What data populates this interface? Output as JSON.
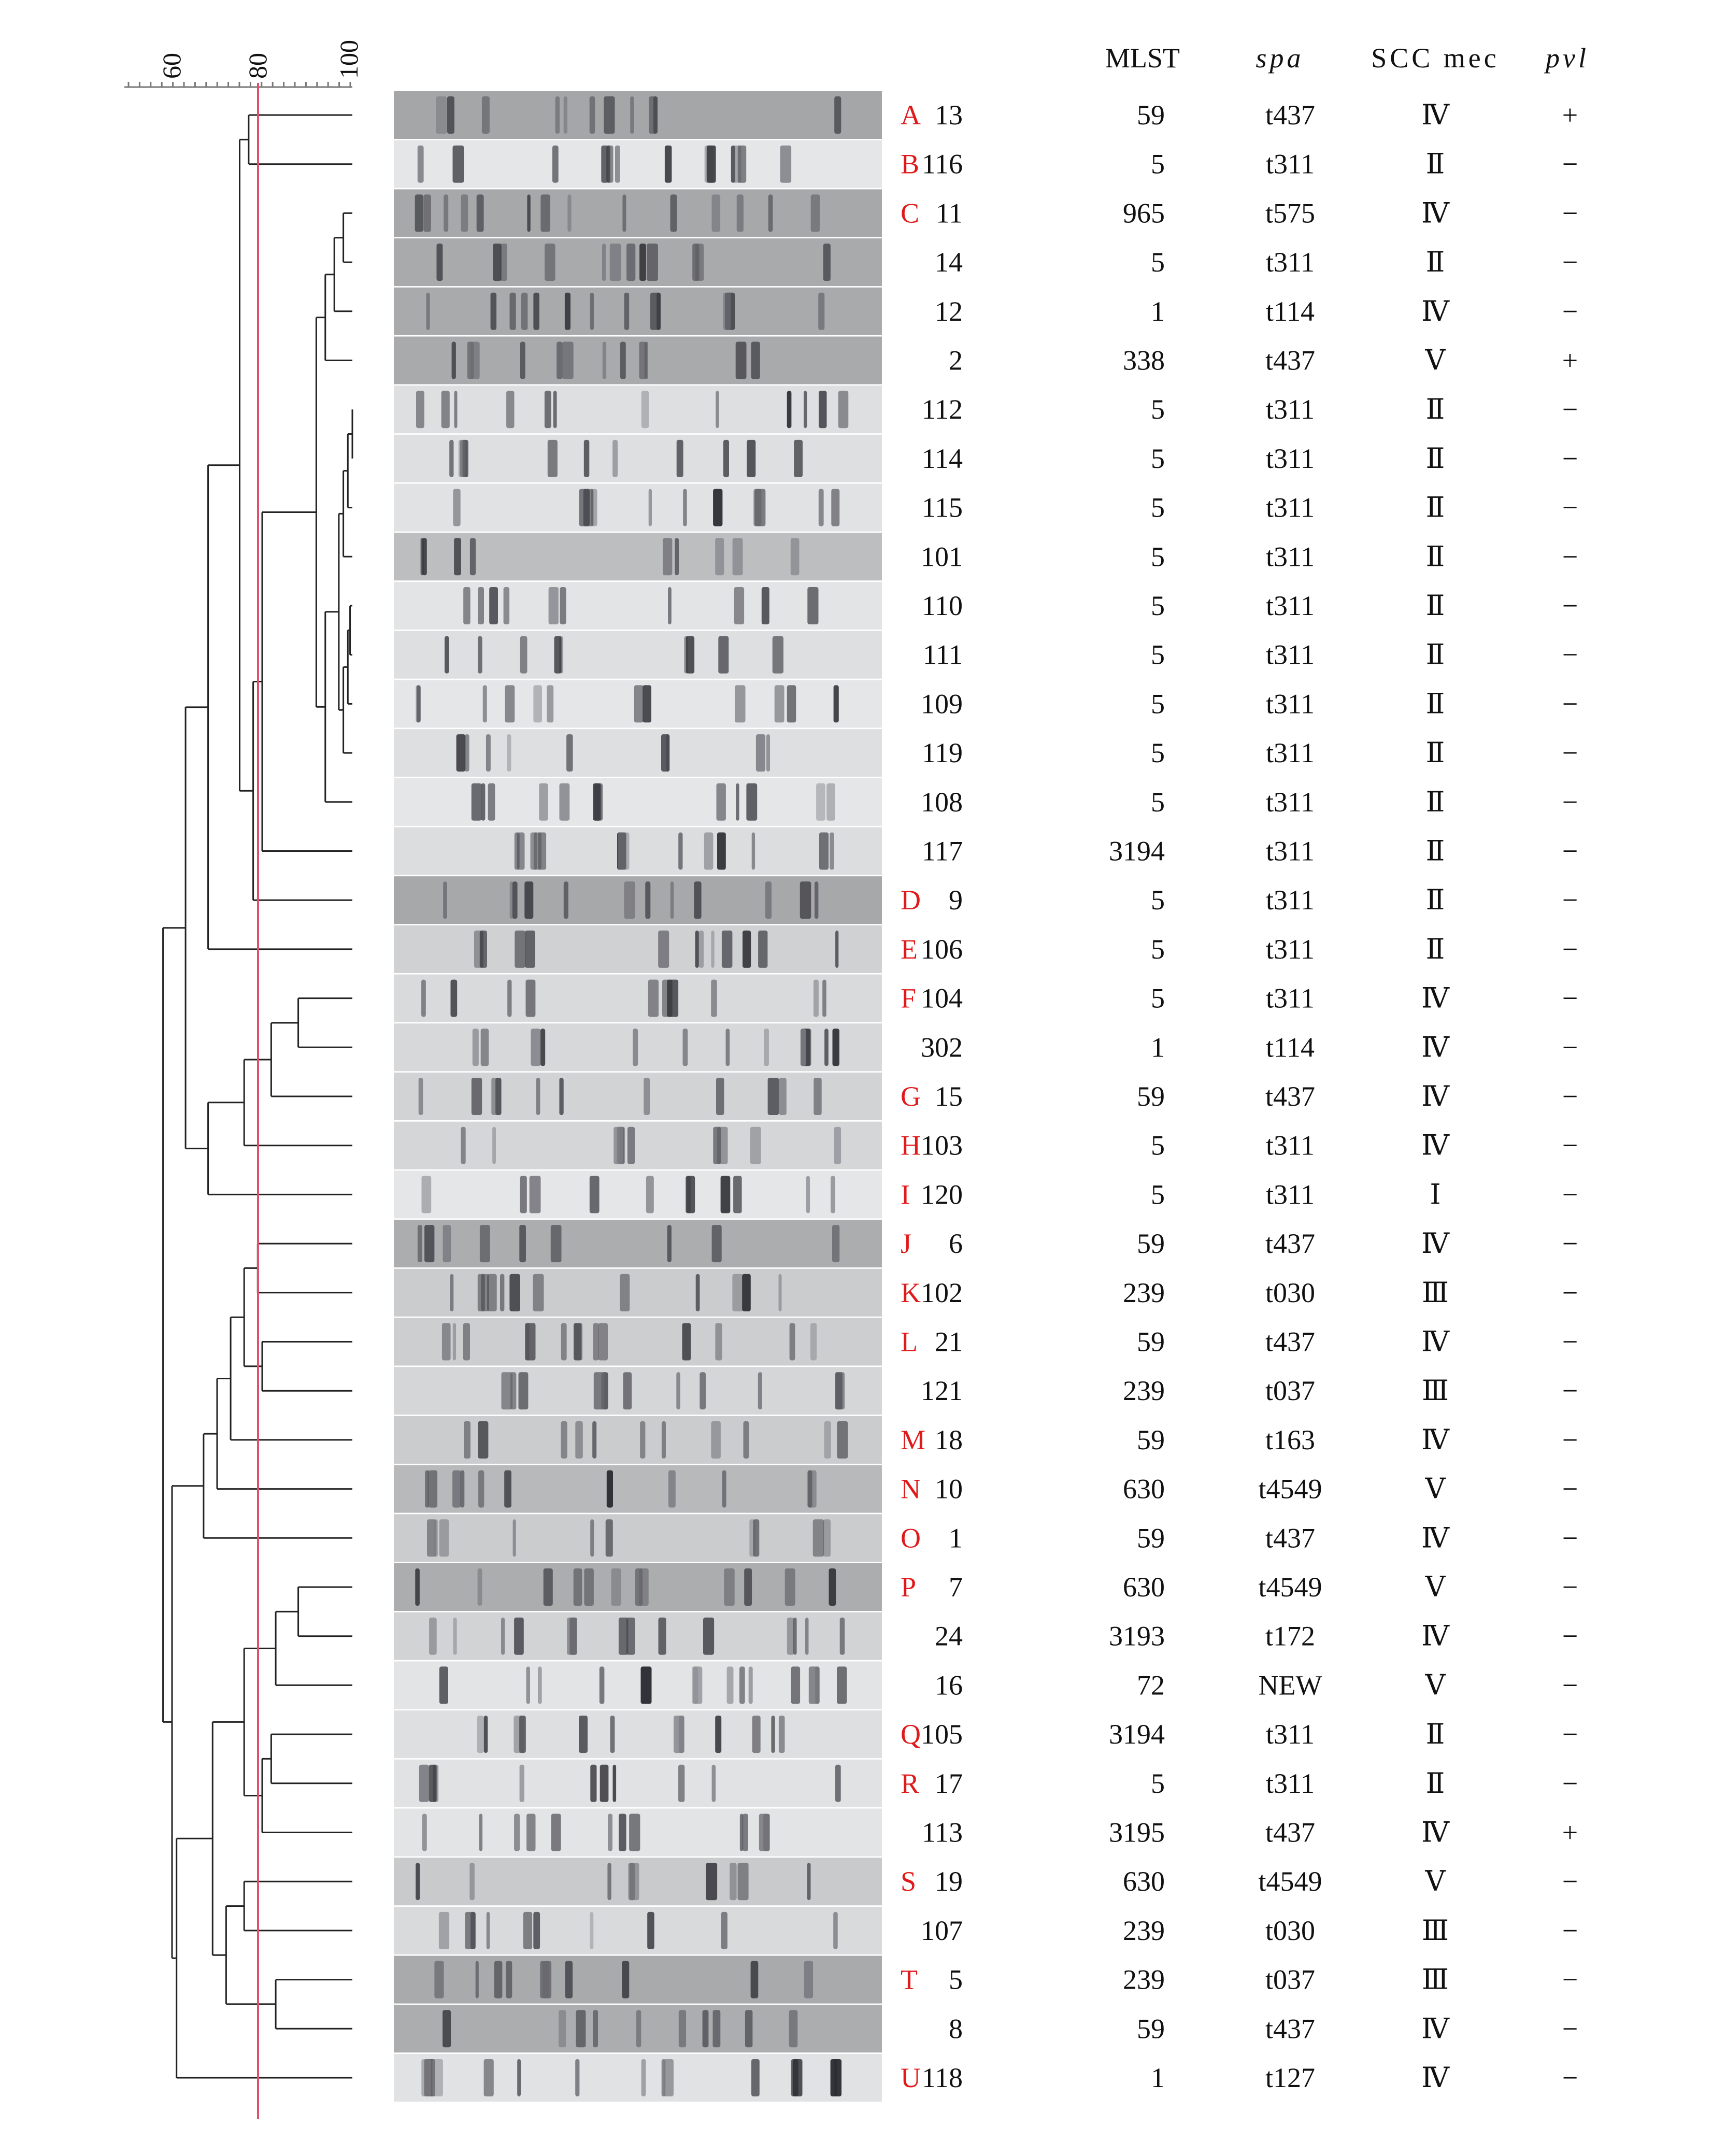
{
  "scale": {
    "ticks": [
      "60",
      "80",
      "100"
    ]
  },
  "headers": {
    "mlst": "MLST",
    "spa": "spa",
    "sccmec": "SCC mec",
    "pvl": "pvl"
  },
  "colors": {
    "cutoff_line": "#e0506a",
    "cluster_letter": "#e01a1a",
    "ink": "#111111"
  },
  "rows": [
    {
      "cluster": "A",
      "isolate": "13",
      "mlst": "59",
      "spa": "t437",
      "scc": "Ⅳ",
      "pvl": "+"
    },
    {
      "cluster": "B",
      "isolate": "116",
      "mlst": "5",
      "spa": "t311",
      "scc": "Ⅱ",
      "pvl": "−"
    },
    {
      "cluster": "C",
      "isolate": "11",
      "mlst": "965",
      "spa": "t575",
      "scc": "Ⅳ",
      "pvl": "−"
    },
    {
      "cluster": "",
      "isolate": "14",
      "mlst": "5",
      "spa": "t311",
      "scc": "Ⅱ",
      "pvl": "−"
    },
    {
      "cluster": "",
      "isolate": "12",
      "mlst": "1",
      "spa": "t114",
      "scc": "Ⅳ",
      "pvl": "−"
    },
    {
      "cluster": "",
      "isolate": "2",
      "mlst": "338",
      "spa": "t437",
      "scc": "Ⅴ",
      "pvl": "+"
    },
    {
      "cluster": "",
      "isolate": "112",
      "mlst": "5",
      "spa": "t311",
      "scc": "Ⅱ",
      "pvl": "−"
    },
    {
      "cluster": "",
      "isolate": "114",
      "mlst": "5",
      "spa": "t311",
      "scc": "Ⅱ",
      "pvl": "−"
    },
    {
      "cluster": "",
      "isolate": "115",
      "mlst": "5",
      "spa": "t311",
      "scc": "Ⅱ",
      "pvl": "−"
    },
    {
      "cluster": "",
      "isolate": "101",
      "mlst": "5",
      "spa": "t311",
      "scc": "Ⅱ",
      "pvl": "−"
    },
    {
      "cluster": "",
      "isolate": "110",
      "mlst": "5",
      "spa": "t311",
      "scc": "Ⅱ",
      "pvl": "−"
    },
    {
      "cluster": "",
      "isolate": "111",
      "mlst": "5",
      "spa": "t311",
      "scc": "Ⅱ",
      "pvl": "−"
    },
    {
      "cluster": "",
      "isolate": "109",
      "mlst": "5",
      "spa": "t311",
      "scc": "Ⅱ",
      "pvl": "−"
    },
    {
      "cluster": "",
      "isolate": "119",
      "mlst": "5",
      "spa": "t311",
      "scc": "Ⅱ",
      "pvl": "−"
    },
    {
      "cluster": "",
      "isolate": "108",
      "mlst": "5",
      "spa": "t311",
      "scc": "Ⅱ",
      "pvl": "−"
    },
    {
      "cluster": "",
      "isolate": "117",
      "mlst": "3194",
      "spa": "t311",
      "scc": "Ⅱ",
      "pvl": "−"
    },
    {
      "cluster": "D",
      "isolate": "9",
      "mlst": "5",
      "spa": "t311",
      "scc": "Ⅱ",
      "pvl": "−"
    },
    {
      "cluster": "E",
      "isolate": "106",
      "mlst": "5",
      "spa": "t311",
      "scc": "Ⅱ",
      "pvl": "−"
    },
    {
      "cluster": "F",
      "isolate": "104",
      "mlst": "5",
      "spa": "t311",
      "scc": "Ⅳ",
      "pvl": "−"
    },
    {
      "cluster": "",
      "isolate": "302",
      "mlst": "1",
      "spa": "t114",
      "scc": "Ⅳ",
      "pvl": "−"
    },
    {
      "cluster": "G",
      "isolate": "15",
      "mlst": "59",
      "spa": "t437",
      "scc": "Ⅳ",
      "pvl": "−"
    },
    {
      "cluster": "H",
      "isolate": "103",
      "mlst": "5",
      "spa": "t311",
      "scc": "Ⅳ",
      "pvl": "−"
    },
    {
      "cluster": "I",
      "isolate": "120",
      "mlst": "5",
      "spa": "t311",
      "scc": "Ⅰ",
      "pvl": "−"
    },
    {
      "cluster": "J",
      "isolate": "6",
      "mlst": "59",
      "spa": "t437",
      "scc": "Ⅳ",
      "pvl": "−"
    },
    {
      "cluster": "K",
      "isolate": "102",
      "mlst": "239",
      "spa": "t030",
      "scc": "Ⅲ",
      "pvl": "−"
    },
    {
      "cluster": "L",
      "isolate": "21",
      "mlst": "59",
      "spa": "t437",
      "scc": "Ⅳ",
      "pvl": "−"
    },
    {
      "cluster": "",
      "isolate": "121",
      "mlst": "239",
      "spa": "t037",
      "scc": "Ⅲ",
      "pvl": "−"
    },
    {
      "cluster": "M",
      "isolate": "18",
      "mlst": "59",
      "spa": "t163",
      "scc": "Ⅳ",
      "pvl": "−"
    },
    {
      "cluster": "N",
      "isolate": "10",
      "mlst": "630",
      "spa": "t4549",
      "scc": "Ⅴ",
      "pvl": "−"
    },
    {
      "cluster": "O",
      "isolate": "1",
      "mlst": "59",
      "spa": "t437",
      "scc": "Ⅳ",
      "pvl": "−"
    },
    {
      "cluster": "P",
      "isolate": "7",
      "mlst": "630",
      "spa": "t4549",
      "scc": "Ⅴ",
      "pvl": "−"
    },
    {
      "cluster": "",
      "isolate": "24",
      "mlst": "3193",
      "spa": "t172",
      "scc": "Ⅳ",
      "pvl": "−"
    },
    {
      "cluster": "",
      "isolate": "16",
      "mlst": "72",
      "spa": "NEW",
      "scc": "Ⅴ",
      "pvl": "−"
    },
    {
      "cluster": "Q",
      "isolate": "105",
      "mlst": "3194",
      "spa": "t311",
      "scc": "Ⅱ",
      "pvl": "−"
    },
    {
      "cluster": "R",
      "isolate": "17",
      "mlst": "5",
      "spa": "t311",
      "scc": "Ⅱ",
      "pvl": "−"
    },
    {
      "cluster": "",
      "isolate": "113",
      "mlst": "3195",
      "spa": "t437",
      "scc": "Ⅳ",
      "pvl": "+"
    },
    {
      "cluster": "S",
      "isolate": "19",
      "mlst": "630",
      "spa": "t4549",
      "scc": "Ⅴ",
      "pvl": "−"
    },
    {
      "cluster": "",
      "isolate": "107",
      "mlst": "239",
      "spa": "t030",
      "scc": "Ⅲ",
      "pvl": "−"
    },
    {
      "cluster": "T",
      "isolate": "5",
      "mlst": "239",
      "spa": "t037",
      "scc": "Ⅲ",
      "pvl": "−"
    },
    {
      "cluster": "",
      "isolate": "8",
      "mlst": "59",
      "spa": "t437",
      "scc": "Ⅳ",
      "pvl": "−"
    },
    {
      "cluster": "U",
      "isolate": "118",
      "mlst": "1",
      "spa": "t127",
      "scc": "Ⅳ",
      "pvl": "−"
    }
  ],
  "lane_shades": [
    0.62,
    0.08,
    0.6,
    0.58,
    0.58,
    0.58,
    0.14,
    0.14,
    0.12,
    0.42,
    0.1,
    0.14,
    0.08,
    0.14,
    0.08,
    0.16,
    0.6,
    0.26,
    0.18,
    0.2,
    0.24,
    0.22,
    0.08,
    0.56,
    0.3,
    0.28,
    0.22,
    0.3,
    0.46,
    0.3,
    0.56,
    0.24,
    0.1,
    0.14,
    0.12,
    0.1,
    0.32,
    0.18,
    0.58,
    0.56,
    0.12
  ]
}
